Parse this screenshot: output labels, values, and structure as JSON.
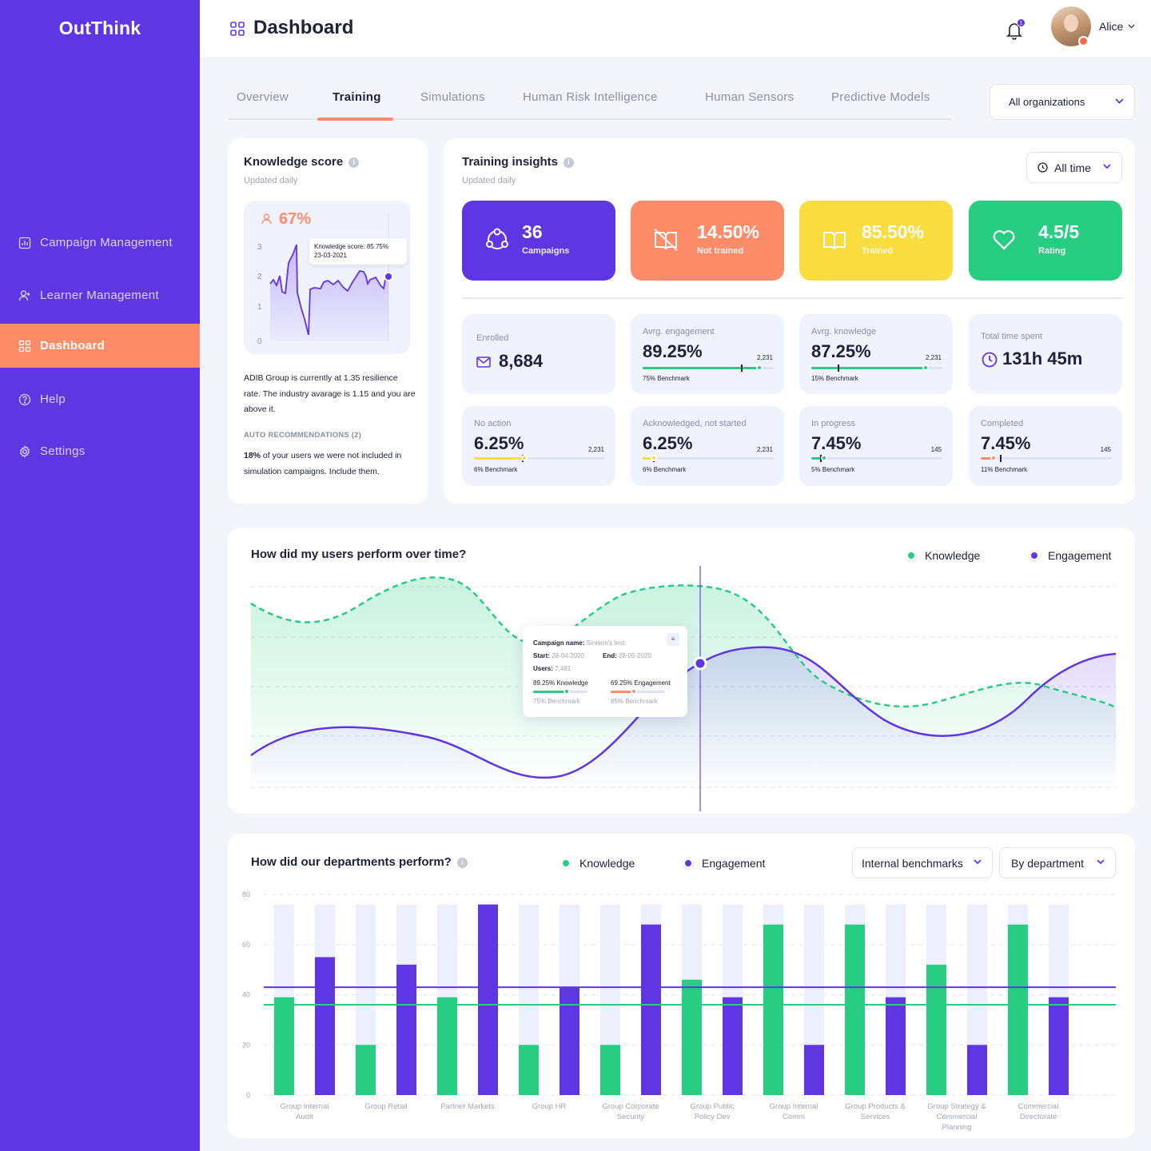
{
  "app": {
    "logo": "OutThink"
  },
  "sidebar": {
    "items": [
      {
        "label": "Campaign Management",
        "icon": "chart-icon"
      },
      {
        "label": "Learner Management",
        "icon": "user-add-icon"
      },
      {
        "label": "Dashboard",
        "icon": "grid-icon",
        "active": true
      },
      {
        "label": "Help",
        "icon": "help-icon"
      },
      {
        "label": "Settings",
        "icon": "gear-icon"
      }
    ]
  },
  "header": {
    "title": "Dashboard",
    "user": "Alice",
    "notifications": "1"
  },
  "tabs": [
    {
      "label": "Overview"
    },
    {
      "label": "Training",
      "active": true
    },
    {
      "label": "Simulations"
    },
    {
      "label": "Human Risk Intelligence"
    },
    {
      "label": "Human Sensors"
    },
    {
      "label": "Predictive Models"
    }
  ],
  "org_select": "All organizations",
  "knowledge": {
    "title": "Knowledge score",
    "updated": "Updated daily",
    "score": "67%",
    "tooltip_label": "Knowledge score: 85.75%",
    "tooltip_date": "23-03-2021",
    "yticks": [
      "3",
      "2",
      "1",
      "0"
    ],
    "description": "ADIB Group is currently at 1.35 resilience rate. The industry avarage is 1.15 and you are above it.",
    "reco_title": "AUTO RECOMMENDATIONS (2)",
    "reco_bold": "18%",
    "reco_text": " of your users we were not included in simulation campaigns. Include them."
  },
  "insights": {
    "title": "Training insights",
    "updated": "Updated daily",
    "period": "All time",
    "colors": {
      "campaigns": "#5e37e3",
      "not_trained": "#fe8c68",
      "trained": "#f9dc3d",
      "rating": "#27cd80"
    },
    "cards": [
      {
        "value": "36",
        "label": "Campaigns",
        "icon": "people-circle-icon"
      },
      {
        "value": "14.50%",
        "label": "Not trained",
        "icon": "book-off-icon"
      },
      {
        "value": "85.50%",
        "label": "Trained",
        "icon": "book-icon"
      },
      {
        "value": "4.5/5",
        "label": "Rating",
        "icon": "heart-icon"
      }
    ],
    "enrolled": {
      "label": "Enrolled",
      "value": "8,684"
    },
    "engagement": {
      "label": "Avrg. engagement",
      "value": "89.25%",
      "count": "2,231",
      "bench": "75% Benchmark",
      "progress": 0.89,
      "benchmark": 0.75
    },
    "knowledge": {
      "label": "Avrg. knowledge",
      "value": "87.25%",
      "count": "2,231",
      "bench": "15% Benchmark",
      "progress": 0.87,
      "benchmark": 0.15
    },
    "time": {
      "label": "Total time spent",
      "value": "131h 45m"
    },
    "no_action": {
      "label": "No action",
      "value": "6.25%",
      "count": "2,231",
      "bench": "6% Benchmark",
      "progress": 0.0625,
      "benchmark": 0.06
    },
    "acknowledged": {
      "label": "Acknowledged, not started",
      "value": "6.25%",
      "count": "2,231",
      "bench": "6% Benchmark",
      "progress": 0.0625,
      "benchmark": 0.06
    },
    "in_progress": {
      "label": "In progress",
      "value": "7.45%",
      "count": "145",
      "bench": "5% Benchmark",
      "progress": 0.0745,
      "benchmark": 0.05
    },
    "completed": {
      "label": "Completed",
      "value": "7.45%",
      "count": "145",
      "bench": "11% Benchmark",
      "progress": 0.0745,
      "benchmark": 0.11
    }
  },
  "performance": {
    "title": "How did my users perform over time?",
    "legend": [
      "Knowledge",
      "Engagement"
    ],
    "tooltip": {
      "campaign_label": "Campaign name:",
      "campaign": "Simeon's test",
      "start_label": "Start:",
      "start": "28-04-2020",
      "end_label": "End:",
      "end": "28-05-2020",
      "users_label": "Users:",
      "users": "7,481",
      "k": "89.25% Knowledge",
      "k_bench": "75% Benchmark",
      "e": "69.25% Engagement",
      "e_bench": "85% Benchmark"
    }
  },
  "departments": {
    "title": "How did our departments perform?",
    "legend": [
      "Knowledge",
      "Engagement"
    ],
    "benchmark_select": "Internal benchmarks",
    "group_select": "By department"
  },
  "chart_data": {
    "type": "bar",
    "ylim": [
      0,
      80
    ],
    "yticks": [
      "0",
      "20",
      "40",
      "60",
      "80"
    ],
    "categories": [
      "Group Internal Audit",
      "Group Retail",
      "Partner Markets",
      "Group HR",
      "Group Corporate Security",
      "Group Public Policy Dev",
      "Group Internal Comm",
      "Group Products & Services",
      "Group Strategy & Commercial Planning",
      "Commercial Directorate"
    ],
    "series": [
      {
        "name": "Knowledge",
        "color": "#27cd80",
        "values": [
          39,
          20,
          39,
          20,
          20,
          46,
          68,
          68,
          52,
          68
        ]
      },
      {
        "name": "Engagement",
        "color": "#5e37e3",
        "values": [
          55,
          52,
          76,
          43,
          68,
          39,
          20,
          39,
          20,
          39
        ]
      }
    ],
    "benchmarks": {
      "Knowledge": 36,
      "Engagement": 43
    },
    "grid": true,
    "legend": "top"
  }
}
